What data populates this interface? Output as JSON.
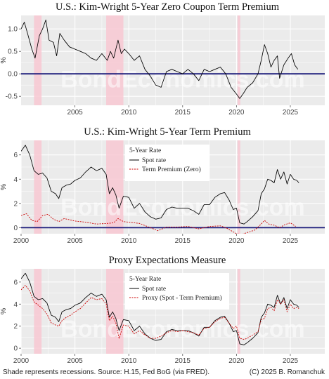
{
  "footer": {
    "source": "Shade represents recessions. Source: H.15, Fed BoG (via FRED).",
    "copyright": "(C) 2025 B. Romanchuk"
  },
  "watermark": "BondEconomics.com",
  "colors": {
    "panel_bg": "#ebebeb",
    "grid": "#ffffff",
    "recession": "#f8c8d2",
    "zero_line": "#1a1a7a",
    "spot": "#000000",
    "term_premium": "#cc0000",
    "proxy": "#cc0000"
  },
  "chart_data": [
    {
      "type": "line",
      "title": "U.S.: Kim-Wright 5-Year Zero Coupon Term Premium",
      "ylabel": "%",
      "xlabel": "",
      "xlim": [
        2000,
        2028.2
      ],
      "ylim": [
        -0.7,
        1.3
      ],
      "xticks": [
        2005,
        2010,
        2015,
        2020,
        2025
      ],
      "yticks": [
        -0.5,
        0.0,
        0.5,
        1.0
      ],
      "ytick_labels": [
        "-0.5",
        "0.0",
        "0.5",
        "1.0"
      ],
      "hline": 0,
      "recessions": [
        [
          2001.2,
          2001.9
        ],
        [
          2007.9,
          2009.5
        ],
        [
          2020.1,
          2020.35
        ]
      ],
      "legend": null,
      "series": [
        {
          "key": "tp",
          "style": "solid",
          "color": "#000000",
          "x": [
            2000.0,
            2000.3,
            2000.6,
            2001.0,
            2001.3,
            2001.7,
            2002.0,
            2002.3,
            2002.6,
            2003.0,
            2003.3,
            2003.6,
            2004.0,
            2004.5,
            2005.0,
            2005.5,
            2006.0,
            2006.5,
            2007.0,
            2007.5,
            2008.0,
            2008.3,
            2008.6,
            2009.0,
            2009.3,
            2009.6,
            2010.0,
            2010.5,
            2011.0,
            2011.5,
            2012.0,
            2012.5,
            2013.0,
            2013.5,
            2014.0,
            2014.5,
            2015.0,
            2015.5,
            2016.0,
            2016.5,
            2017.0,
            2017.5,
            2018.0,
            2018.5,
            2019.0,
            2019.5,
            2020.0,
            2020.3,
            2020.6,
            2021.0,
            2021.5,
            2022.0,
            2022.3,
            2022.6,
            2022.9,
            2023.2,
            2023.5,
            2023.8,
            2024.0,
            2024.4,
            2024.8,
            2025.1,
            2025.4,
            2025.7
          ],
          "y": [
            1.0,
            1.15,
            0.9,
            0.55,
            0.35,
            0.85,
            1.0,
            1.2,
            0.75,
            0.7,
            0.4,
            0.9,
            0.75,
            0.6,
            0.55,
            0.5,
            0.45,
            0.35,
            0.3,
            0.45,
            0.3,
            0.5,
            0.35,
            0.75,
            0.45,
            0.55,
            0.45,
            0.3,
            0.4,
            0.1,
            -0.05,
            -0.25,
            -0.3,
            0.05,
            0.1,
            0.05,
            0.0,
            0.1,
            0.0,
            -0.15,
            0.1,
            0.05,
            0.1,
            0.15,
            0.0,
            -0.3,
            -0.45,
            -0.55,
            -0.45,
            -0.3,
            -0.2,
            0.0,
            0.3,
            0.65,
            0.45,
            0.15,
            0.3,
            0.4,
            -0.1,
            0.2,
            0.35,
            0.45,
            0.2,
            0.1
          ]
        }
      ]
    },
    {
      "type": "line",
      "title": "U.S.: Kim-Wright 5-Year Term Premium",
      "ylabel": "%",
      "xlabel": "",
      "xlim": [
        2000,
        2028.2
      ],
      "ylim": [
        -0.5,
        7.2
      ],
      "xticks": [
        2000,
        2005,
        2010,
        2015,
        2020,
        2025
      ],
      "yticks": [
        0,
        2,
        4,
        6
      ],
      "ytick_labels": [
        "0",
        "2",
        "4",
        "6"
      ],
      "hline": 0,
      "recessions": [
        [
          2001.2,
          2001.9
        ],
        [
          2007.9,
          2009.5
        ],
        [
          2020.1,
          2020.35
        ]
      ],
      "legend": {
        "title": "5-Year Rate",
        "placement": "top-center"
      },
      "series": [
        {
          "key": "spot",
          "name": "Spot rate",
          "style": "solid",
          "color": "#000000",
          "x": [
            2000.0,
            2000.4,
            2000.8,
            2001.2,
            2001.6,
            2002.0,
            2002.4,
            2002.8,
            2003.2,
            2003.5,
            2003.8,
            2004.2,
            2004.6,
            2005.0,
            2005.5,
            2006.0,
            2006.5,
            2007.0,
            2007.5,
            2007.9,
            2008.2,
            2008.5,
            2008.8,
            2009.1,
            2009.5,
            2010.0,
            2010.5,
            2011.0,
            2011.5,
            2012.0,
            2012.5,
            2013.0,
            2013.5,
            2014.0,
            2014.5,
            2015.0,
            2015.5,
            2016.0,
            2016.5,
            2017.0,
            2017.5,
            2018.0,
            2018.5,
            2018.9,
            2019.3,
            2019.7,
            2020.0,
            2020.3,
            2020.7,
            2021.0,
            2021.5,
            2022.0,
            2022.3,
            2022.6,
            2022.9,
            2023.2,
            2023.5,
            2023.8,
            2024.1,
            2024.4,
            2024.7,
            2025.0,
            2025.3,
            2025.6,
            2025.8
          ],
          "y": [
            6.3,
            6.8,
            6.0,
            4.7,
            4.4,
            4.5,
            4.1,
            3.0,
            2.8,
            2.4,
            3.3,
            3.5,
            3.6,
            3.9,
            4.1,
            4.6,
            5.0,
            4.7,
            4.9,
            4.4,
            2.8,
            3.3,
            2.7,
            1.6,
            2.6,
            2.5,
            1.6,
            2.0,
            1.3,
            0.9,
            0.7,
            0.8,
            1.5,
            1.7,
            1.6,
            1.6,
            1.6,
            1.4,
            1.1,
            1.9,
            1.9,
            2.5,
            2.8,
            2.9,
            2.3,
            1.5,
            1.6,
            0.4,
            0.3,
            0.5,
            0.9,
            1.4,
            2.8,
            3.2,
            4.0,
            3.9,
            3.7,
            4.8,
            4.0,
            4.6,
            3.6,
            4.4,
            4.0,
            3.9,
            3.7
          ]
        },
        {
          "key": "tp",
          "name": "Term Premium (Zero)",
          "style": "dashed",
          "color": "#cc0000",
          "x": [
            2000.0,
            2000.5,
            2001.0,
            2001.5,
            2002.0,
            2002.5,
            2003.0,
            2003.5,
            2004.0,
            2005.0,
            2006.0,
            2007.0,
            2008.0,
            2008.6,
            2009.0,
            2009.5,
            2010.0,
            2011.0,
            2012.0,
            2012.7,
            2013.5,
            2014.5,
            2015.5,
            2016.5,
            2017.5,
            2018.5,
            2019.0,
            2019.6,
            2020.0,
            2020.5,
            2021.0,
            2021.7,
            2022.3,
            2022.6,
            2023.0,
            2023.5,
            2024.0,
            2024.5,
            2025.0,
            2025.5
          ],
          "y": [
            1.0,
            1.15,
            0.6,
            0.5,
            1.0,
            1.1,
            0.7,
            0.5,
            0.75,
            0.55,
            0.45,
            0.3,
            0.35,
            0.4,
            0.75,
            0.5,
            0.45,
            0.35,
            0.0,
            -0.25,
            0.05,
            0.05,
            0.1,
            -0.1,
            0.1,
            0.15,
            0.0,
            -0.3,
            -0.5,
            -0.55,
            -0.4,
            -0.2,
            0.3,
            0.6,
            0.3,
            0.2,
            0.0,
            0.25,
            0.4,
            0.1
          ]
        }
      ]
    },
    {
      "type": "line",
      "title": "Proxy Expectations Measure",
      "ylabel": "%",
      "xlabel": "",
      "xlim": [
        2000,
        2028.2
      ],
      "ylim": [
        -0.5,
        7.2
      ],
      "xticks": [
        2000,
        2005,
        2010,
        2015,
        2020,
        2025
      ],
      "yticks": [
        0,
        2,
        4,
        6
      ],
      "ytick_labels": [
        "0",
        "2",
        "4",
        "6"
      ],
      "hline": null,
      "recessions": [
        [
          2001.2,
          2001.9
        ],
        [
          2007.9,
          2009.5
        ],
        [
          2020.1,
          2020.35
        ]
      ],
      "legend": {
        "title": "5-Year Rate",
        "placement": "top-center"
      },
      "series": [
        {
          "key": "spot",
          "name": "Spot rate",
          "style": "solid",
          "color": "#000000",
          "x": [
            2000.0,
            2000.4,
            2000.8,
            2001.2,
            2001.6,
            2002.0,
            2002.4,
            2002.8,
            2003.2,
            2003.5,
            2003.8,
            2004.2,
            2004.6,
            2005.0,
            2005.5,
            2006.0,
            2006.5,
            2007.0,
            2007.5,
            2007.9,
            2008.2,
            2008.5,
            2008.8,
            2009.1,
            2009.5,
            2010.0,
            2010.5,
            2011.0,
            2011.5,
            2012.0,
            2012.5,
            2013.0,
            2013.5,
            2014.0,
            2014.5,
            2015.0,
            2015.5,
            2016.0,
            2016.5,
            2017.0,
            2017.5,
            2018.0,
            2018.5,
            2018.9,
            2019.3,
            2019.7,
            2020.0,
            2020.3,
            2020.7,
            2021.0,
            2021.5,
            2022.0,
            2022.3,
            2022.6,
            2022.9,
            2023.2,
            2023.5,
            2023.8,
            2024.1,
            2024.4,
            2024.7,
            2025.0,
            2025.3,
            2025.6,
            2025.8
          ],
          "y": [
            6.3,
            6.8,
            6.0,
            4.7,
            4.4,
            4.5,
            4.1,
            3.0,
            2.8,
            2.4,
            3.3,
            3.5,
            3.6,
            3.9,
            4.1,
            4.6,
            5.0,
            4.7,
            4.9,
            4.4,
            2.8,
            3.3,
            2.7,
            1.6,
            2.6,
            2.5,
            1.6,
            2.0,
            1.3,
            0.9,
            0.7,
            0.8,
            1.5,
            1.7,
            1.6,
            1.6,
            1.6,
            1.4,
            1.1,
            1.9,
            1.9,
            2.5,
            2.8,
            2.9,
            2.3,
            1.5,
            1.6,
            0.4,
            0.3,
            0.5,
            0.9,
            1.4,
            2.8,
            3.2,
            4.0,
            3.9,
            3.7,
            4.8,
            4.0,
            4.6,
            3.6,
            4.4,
            4.0,
            3.9,
            3.7
          ]
        },
        {
          "key": "proxy",
          "name": "Proxy (Spot - Term Premium)",
          "style": "dashed",
          "color": "#cc0000",
          "x": [
            2000.0,
            2000.4,
            2000.8,
            2001.2,
            2001.6,
            2002.0,
            2002.4,
            2002.8,
            2003.2,
            2003.5,
            2003.8,
            2004.2,
            2004.6,
            2005.0,
            2005.5,
            2006.0,
            2006.5,
            2007.0,
            2007.5,
            2007.9,
            2008.2,
            2008.5,
            2008.8,
            2009.1,
            2009.5,
            2010.0,
            2010.5,
            2011.0,
            2011.5,
            2012.0,
            2012.5,
            2013.0,
            2013.5,
            2014.0,
            2014.5,
            2015.0,
            2015.5,
            2016.0,
            2016.5,
            2017.0,
            2017.5,
            2018.0,
            2018.5,
            2018.9,
            2019.3,
            2019.7,
            2020.0,
            2020.3,
            2020.7,
            2021.0,
            2021.5,
            2022.0,
            2022.3,
            2022.6,
            2022.9,
            2023.2,
            2023.5,
            2023.8,
            2024.1,
            2024.4,
            2024.7,
            2025.0,
            2025.3,
            2025.6,
            2025.8
          ],
          "y": [
            5.3,
            5.7,
            5.2,
            4.2,
            3.9,
            3.6,
            3.1,
            2.3,
            2.1,
            2.0,
            2.5,
            2.8,
            3.0,
            3.3,
            3.6,
            4.1,
            4.6,
            4.4,
            4.5,
            4.0,
            2.5,
            2.9,
            2.3,
            0.9,
            2.1,
            2.0,
            1.3,
            1.6,
            1.2,
            0.9,
            0.9,
            1.1,
            1.4,
            1.6,
            1.5,
            1.6,
            1.5,
            1.4,
            1.2,
            1.8,
            1.9,
            2.4,
            2.7,
            2.8,
            2.3,
            1.8,
            2.0,
            0.9,
            0.8,
            0.9,
            1.2,
            1.5,
            2.6,
            2.7,
            3.6,
            3.7,
            3.4,
            4.4,
            4.0,
            4.4,
            3.3,
            4.0,
            3.6,
            3.7,
            3.6
          ]
        }
      ]
    }
  ]
}
